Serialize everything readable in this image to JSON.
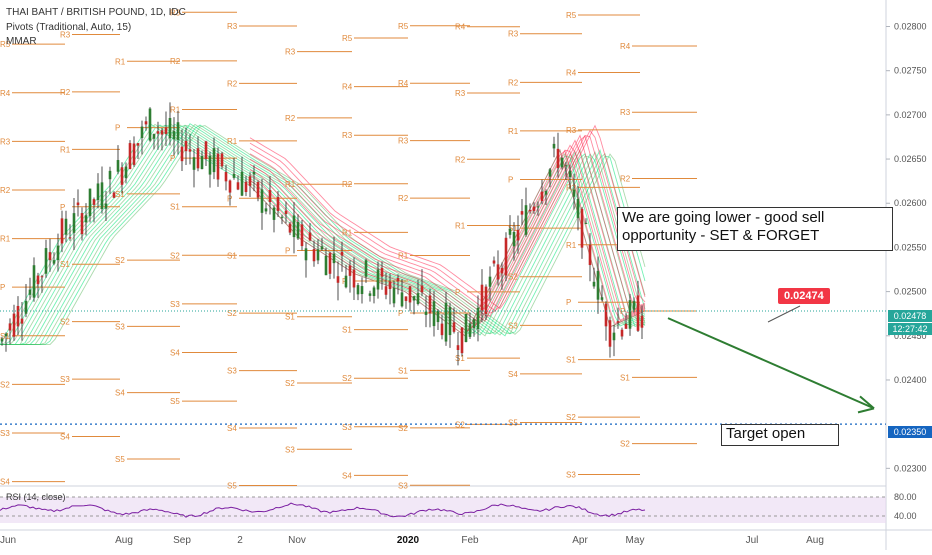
{
  "header": {
    "symbol": "THAI BAHT / BRITISH POUND, 1D, IDC",
    "indicator1": "Pivots (Traditional, Auto, 15)",
    "indicator2": "MMAR"
  },
  "rsi": {
    "label": "RSI (14, close)",
    "levels": [
      "80.00",
      "40.00"
    ]
  },
  "annotations": {
    "note_main_line1": "We are going lower - good sell",
    "note_main_line2": "opportunity - SET & FORGET",
    "note_target": "Target open",
    "price_tag": "0.02474"
  },
  "axis_badges": {
    "last_price": "0.02478",
    "countdown": "12:27:42",
    "target_level": "0.02350"
  },
  "colors": {
    "up_candle": "#2e7d32",
    "down_candle": "#c62828",
    "ribbon_green": "#00e676",
    "ribbon_red": "#ff1744",
    "pivot_line": "#e08a3c",
    "arrow": "#2e7d32",
    "target_line": "#1565c0",
    "rsi_line": "#7b1fa2"
  },
  "chart_data": {
    "type": "line",
    "title": "THAI BAHT / BRITISH POUND, 1D, IDC",
    "x_tick_labels": [
      "Jun",
      "Aug",
      "Sep",
      "2",
      "Nov",
      "2020",
      "Feb",
      "Apr",
      "May",
      "Jul",
      "Aug"
    ],
    "y_tick_labels": [
      "0.02800",
      "0.02750",
      "0.02700",
      "0.02650",
      "0.02600",
      "0.02550",
      "0.02500",
      "0.02450",
      "0.02400",
      "0.02300"
    ],
    "ylim": [
      0.0228,
      0.0283
    ],
    "series": [
      {
        "x": [
          "May 2019",
          "Jun 2019",
          "Jul 2019",
          "Aug 2019",
          "Sep 2019",
          "Oct 2019",
          "Nov 2019",
          "Dec 2019",
          "Jan 2020",
          "Feb 2020",
          "Mar 2020",
          "Apr 2020",
          "May 2020"
        ],
        "close": [
          0.0244,
          0.0256,
          0.0262,
          0.0269,
          0.0265,
          0.0262,
          0.0256,
          0.0252,
          0.025,
          0.0245,
          0.0266,
          0.0246,
          0.02478
        ]
      }
    ],
    "rsi": {
      "x": [
        "Jun",
        "Aug",
        "Sep",
        "Nov",
        "2020",
        "Feb",
        "Apr",
        "May"
      ],
      "values": [
        58,
        55,
        62,
        48,
        60,
        45,
        68,
        50
      ]
    },
    "pivot_labels": [
      "R5",
      "R4",
      "R3",
      "R2",
      "R1",
      "P",
      "S1",
      "S2",
      "S3",
      "S4",
      "S5"
    ],
    "projection": {
      "from": [
        "May 2020",
        0.0247
      ],
      "to": [
        "Aug 2020",
        0.0235
      ]
    },
    "target_level": 0.0235,
    "last_price": 0.02478
  }
}
